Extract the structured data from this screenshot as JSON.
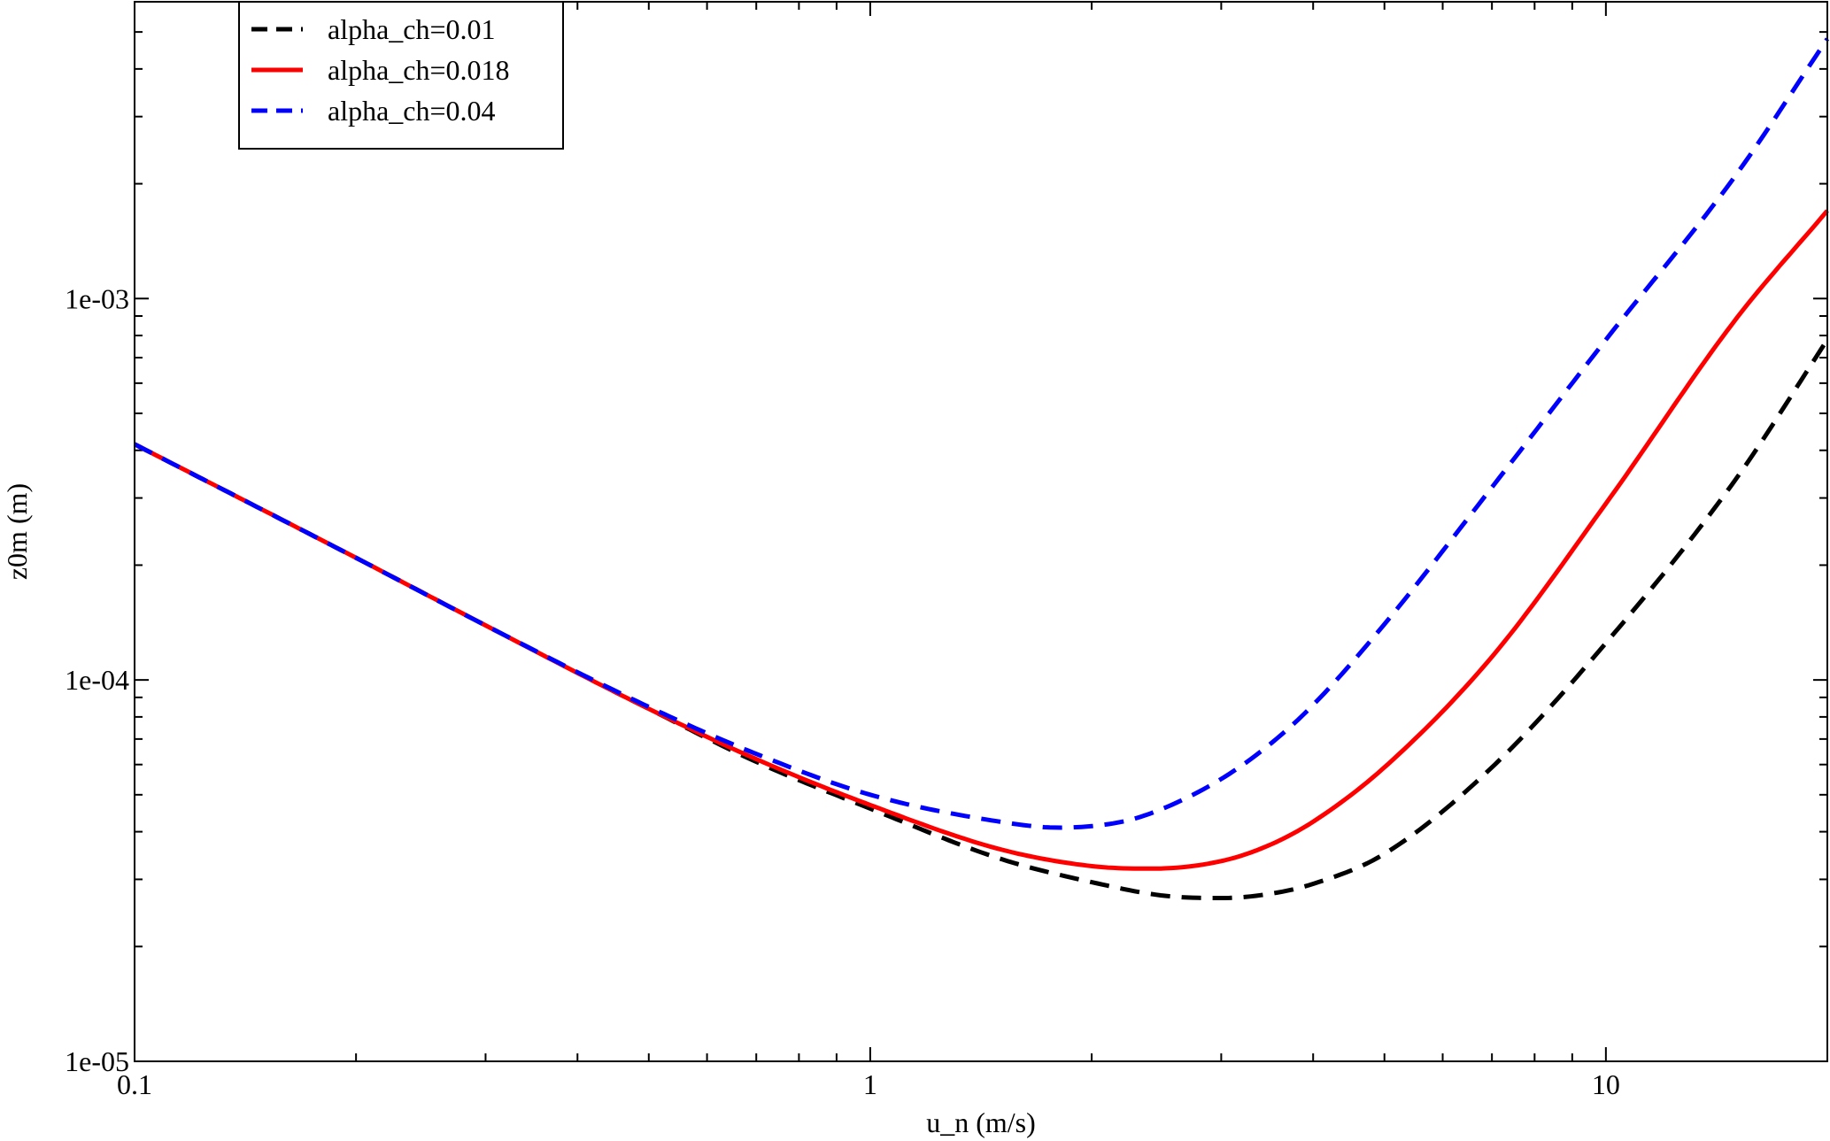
{
  "chart_data": {
    "type": "line",
    "title": "",
    "xlabel": "u_n (m/s)",
    "ylabel": "z0m (m)",
    "xscale": "log",
    "yscale": "log",
    "xlim": [
      0.1,
      20
    ],
    "ylim": [
      1e-05,
      0.006
    ],
    "grid": false,
    "legend_position": "top-left",
    "x_ticks": [
      {
        "value": 0.1,
        "label": "0.1"
      },
      {
        "value": 1,
        "label": "1"
      },
      {
        "value": 10,
        "label": "10"
      }
    ],
    "y_ticks": [
      {
        "value": 1e-05,
        "label": "1e-05"
      },
      {
        "value": 0.0001,
        "label": "1e-04"
      },
      {
        "value": 0.001,
        "label": "1e-03"
      }
    ],
    "series": [
      {
        "name": "alpha_ch=0.01",
        "color": "#000000",
        "dash": "dashed",
        "x": [
          0.1,
          0.15,
          0.2,
          0.3,
          0.5,
          0.7,
          1.0,
          1.5,
          2.0,
          2.5,
          3.0,
          3.5,
          4.0,
          5.0,
          7.0,
          10.0,
          15.0,
          20.0
        ],
        "y": [
          0.000415,
          0.000278,
          0.000209,
          0.000139,
          8.4e-05,
          6.1e-05,
          4.6e-05,
          3.4e-05,
          2.95e-05,
          2.72e-05,
          2.68e-05,
          2.75e-05,
          2.92e-05,
          3.5e-05,
          5.9e-05,
          0.000125,
          0.000335,
          0.00078
        ]
      },
      {
        "name": "alpha_ch=0.018",
        "color": "#ff0000",
        "dash": "solid",
        "x": [
          0.1,
          0.15,
          0.2,
          0.3,
          0.5,
          0.7,
          1.0,
          1.5,
          2.0,
          2.4,
          3.0,
          3.5,
          4.0,
          5.0,
          7.0,
          10.0,
          15.0,
          20.0
        ],
        "y": [
          0.000415,
          0.000278,
          0.000209,
          0.000139,
          8.4e-05,
          6.2e-05,
          4.7e-05,
          3.6e-05,
          3.25e-05,
          3.2e-05,
          3.35e-05,
          3.7e-05,
          4.25e-05,
          5.9e-05,
          0.000115,
          0.00029,
          0.00088,
          0.0017
        ]
      },
      {
        "name": "alpha_ch=0.04",
        "color": "#0000ff",
        "dash": "dashed",
        "x": [
          0.1,
          0.15,
          0.2,
          0.3,
          0.5,
          0.7,
          1.0,
          1.5,
          1.8,
          2.2,
          2.5,
          3.0,
          3.5,
          4.0,
          5.0,
          7.0,
          10.0,
          15.0,
          20.0
        ],
        "y": [
          0.000415,
          0.000278,
          0.000209,
          0.000139,
          8.5e-05,
          6.4e-05,
          5e-05,
          4.25e-05,
          4.1e-05,
          4.25e-05,
          4.6e-05,
          5.5e-05,
          6.8e-05,
          8.6e-05,
          0.00014,
          0.00032,
          0.00078,
          0.0021,
          0.0048
        ]
      }
    ]
  }
}
